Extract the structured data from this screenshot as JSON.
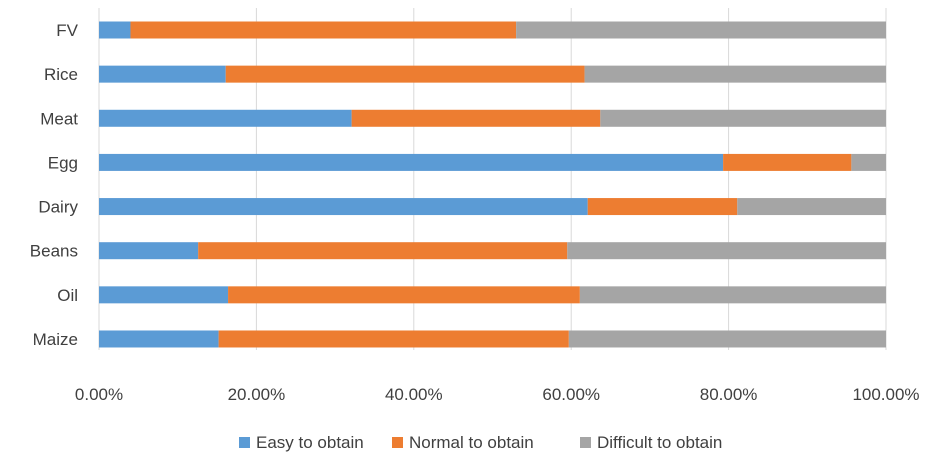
{
  "chart_data": {
    "type": "bar",
    "orientation": "horizontal",
    "stacked": true,
    "stack_mode": "percent",
    "categories": [
      "FV",
      "Rice",
      "Meat",
      "Egg",
      "Dairy",
      "Beans",
      "Oil",
      "Maize"
    ],
    "series": [
      {
        "name": "Easy to obtain",
        "color": "#5B9BD5",
        "values": [
          0.04,
          0.161,
          0.321,
          0.793,
          0.621,
          0.126,
          0.164,
          0.152
        ]
      },
      {
        "name": "Normal to obtain",
        "color": "#ED7D31",
        "values": [
          0.49,
          0.456,
          0.316,
          0.163,
          0.19,
          0.469,
          0.447,
          0.445
        ]
      },
      {
        "name": "Difficult to obtain",
        "color": "#A5A5A5",
        "values": [
          0.47,
          0.383,
          0.363,
          0.044,
          0.189,
          0.405,
          0.389,
          0.403
        ]
      }
    ],
    "xlim": [
      0,
      1
    ],
    "x_ticks": [
      "0.00%",
      "20.00%",
      "40.00%",
      "60.00%",
      "80.00%",
      "100.00%"
    ],
    "grid": true,
    "legend_position": "bottom"
  }
}
